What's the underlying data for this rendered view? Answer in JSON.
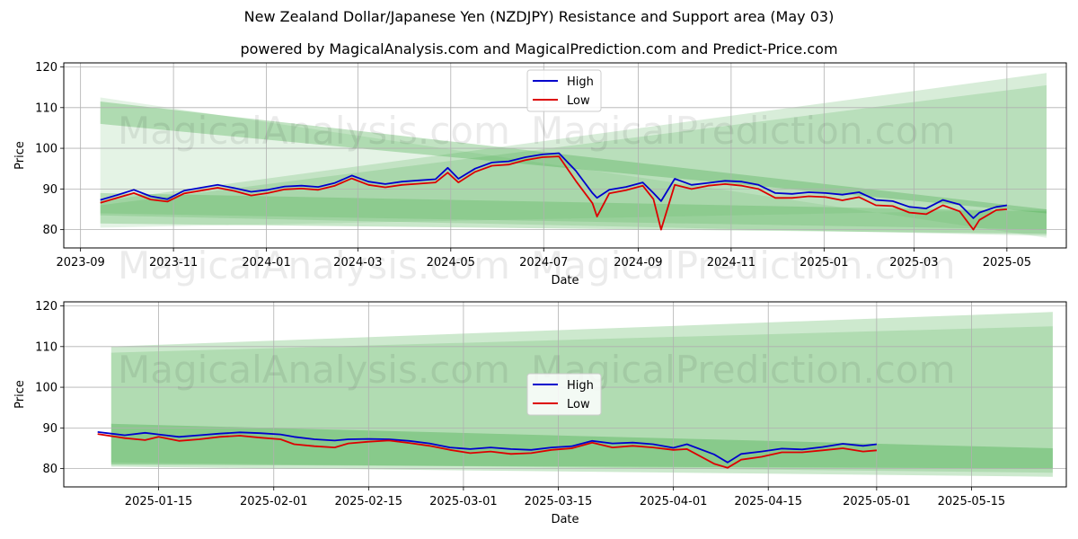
{
  "title": "New Zealand Dollar/Japanese Yen (NZDJPY) Resistance and Support area (May 03)",
  "subtitle": "powered by MagicalAnalysis.com and MagicalPrediction.com and Predict-Price.com",
  "watermarks": [
    "MagicalAnalysis.com",
    "MagicalPrediction.com"
  ],
  "colors": {
    "high": "#0000cc",
    "low": "#dd0000",
    "band": "#4caf50",
    "grid": "#b0b0b0"
  },
  "chart_data": [
    {
      "type": "line",
      "xlabel": "Date",
      "ylabel": "Price",
      "x_ticks": [
        "2023-09",
        "2023-11",
        "2024-01",
        "2024-03",
        "2024-05",
        "2024-07",
        "2024-09",
        "2024-11",
        "2025-01",
        "2025-03",
        "2025-05"
      ],
      "y_ticks": [
        80,
        90,
        100,
        110,
        120
      ],
      "xlim": [
        "2023-08-21",
        "2025-06-09"
      ],
      "ylim": [
        75.5,
        121
      ],
      "legend": {
        "position": "top-center",
        "entries": [
          "High",
          "Low"
        ]
      },
      "grid": true,
      "series": [
        {
          "name": "High",
          "color": "#0000cc",
          "x": [
            "2023-09-14",
            "2023-09-25",
            "2023-10-06",
            "2023-10-17",
            "2023-10-28",
            "2023-11-08",
            "2023-11-19",
            "2023-11-30",
            "2023-12-11",
            "2023-12-22",
            "2024-01-02",
            "2024-01-13",
            "2024-01-24",
            "2024-02-04",
            "2024-02-15",
            "2024-02-26",
            "2024-03-08",
            "2024-03-19",
            "2024-03-30",
            "2024-04-10",
            "2024-04-21",
            "2024-04-29",
            "2024-05-06",
            "2024-05-17",
            "2024-05-28",
            "2024-06-08",
            "2024-06-19",
            "2024-06-30",
            "2024-07-11",
            "2024-07-22",
            "2024-08-02",
            "2024-08-05",
            "2024-08-13",
            "2024-08-24",
            "2024-09-04",
            "2024-09-11",
            "2024-09-16",
            "2024-09-25",
            "2024-10-06",
            "2024-10-17",
            "2024-10-28",
            "2024-11-08",
            "2024-11-19",
            "2024-11-30",
            "2024-12-11",
            "2024-12-22",
            "2025-01-02",
            "2025-01-13",
            "2025-01-24",
            "2025-02-04",
            "2025-02-15",
            "2025-02-26",
            "2025-03-09",
            "2025-03-20",
            "2025-03-31",
            "2025-04-09",
            "2025-04-13",
            "2025-04-24",
            "2025-05-01"
          ],
          "values": [
            87.3,
            88.5,
            89.8,
            88.2,
            87.5,
            89.6,
            90.3,
            91.0,
            90.2,
            89.3,
            89.8,
            90.6,
            90.8,
            90.5,
            91.5,
            93.3,
            91.8,
            91.2,
            91.8,
            92.1,
            92.4,
            95.2,
            92.5,
            95.0,
            96.5,
            96.8,
            97.8,
            98.5,
            98.8,
            94.5,
            89.0,
            87.8,
            89.8,
            90.5,
            91.6,
            89.0,
            87.0,
            92.5,
            91.0,
            91.5,
            92.0,
            91.8,
            91.0,
            89.0,
            88.8,
            89.2,
            89.0,
            88.6,
            89.2,
            87.3,
            87.0,
            85.6,
            85.2,
            87.3,
            86.2,
            82.8,
            84.2,
            85.6,
            86.0
          ]
        },
        {
          "name": "Low",
          "color": "#dd0000",
          "x": [
            "2023-09-14",
            "2023-09-25",
            "2023-10-06",
            "2023-10-17",
            "2023-10-28",
            "2023-11-08",
            "2023-11-19",
            "2023-11-30",
            "2023-12-11",
            "2023-12-22",
            "2024-01-02",
            "2024-01-13",
            "2024-01-24",
            "2024-02-04",
            "2024-02-15",
            "2024-02-26",
            "2024-03-08",
            "2024-03-19",
            "2024-03-30",
            "2024-04-10",
            "2024-04-21",
            "2024-04-29",
            "2024-05-06",
            "2024-05-17",
            "2024-05-28",
            "2024-06-08",
            "2024-06-19",
            "2024-06-30",
            "2024-07-11",
            "2024-07-22",
            "2024-08-02",
            "2024-08-05",
            "2024-08-13",
            "2024-08-24",
            "2024-09-04",
            "2024-09-11",
            "2024-09-16",
            "2024-09-25",
            "2024-10-06",
            "2024-10-17",
            "2024-10-28",
            "2024-11-08",
            "2024-11-19",
            "2024-11-30",
            "2024-12-11",
            "2024-12-22",
            "2025-01-02",
            "2025-01-13",
            "2025-01-24",
            "2025-02-04",
            "2025-02-15",
            "2025-02-26",
            "2025-03-09",
            "2025-03-20",
            "2025-03-31",
            "2025-04-09",
            "2025-04-13",
            "2025-04-24",
            "2025-05-01"
          ],
          "values": [
            86.6,
            87.8,
            89.0,
            87.4,
            86.9,
            88.9,
            89.6,
            90.3,
            89.5,
            88.4,
            89.0,
            89.9,
            90.1,
            89.8,
            90.8,
            92.6,
            91.0,
            90.4,
            91.0,
            91.3,
            91.6,
            94.0,
            91.6,
            94.2,
            95.7,
            96.0,
            97.1,
            97.8,
            98.0,
            92.0,
            86.5,
            83.2,
            88.9,
            89.7,
            90.8,
            87.5,
            80.0,
            91.0,
            90.0,
            90.8,
            91.2,
            90.8,
            90.0,
            87.8,
            87.8,
            88.2,
            88.0,
            87.2,
            88.0,
            86.0,
            85.8,
            84.2,
            83.8,
            86.0,
            84.5,
            80.0,
            82.4,
            84.8,
            85.0
          ]
        }
      ]
    },
    {
      "type": "line",
      "xlabel": "Date",
      "ylabel": "Price",
      "x_ticks": [
        "2025-01-15",
        "2025-02-01",
        "2025-02-15",
        "2025-03-01",
        "2025-03-15",
        "2025-04-01",
        "2025-04-15",
        "2025-05-01",
        "2025-05-15"
      ],
      "y_ticks": [
        80,
        90,
        100,
        110,
        120
      ],
      "xlim": [
        "2025-01-01",
        "2025-05-29"
      ],
      "ylim": [
        75.5,
        121
      ],
      "legend": {
        "position": "center",
        "entries": [
          "High",
          "Low"
        ]
      },
      "grid": true,
      "series": [
        {
          "name": "High",
          "color": "#0000cc",
          "x": [
            "2025-01-06",
            "2025-01-10",
            "2025-01-13",
            "2025-01-15",
            "2025-01-18",
            "2025-01-21",
            "2025-01-24",
            "2025-01-27",
            "2025-01-30",
            "2025-02-02",
            "2025-02-04",
            "2025-02-07",
            "2025-02-10",
            "2025-02-12",
            "2025-02-15",
            "2025-02-18",
            "2025-02-21",
            "2025-02-24",
            "2025-02-27",
            "2025-03-02",
            "2025-03-05",
            "2025-03-08",
            "2025-03-11",
            "2025-03-14",
            "2025-03-17",
            "2025-03-20",
            "2025-03-23",
            "2025-03-26",
            "2025-03-29",
            "2025-04-01",
            "2025-04-03",
            "2025-04-07",
            "2025-04-09",
            "2025-04-11",
            "2025-04-14",
            "2025-04-17",
            "2025-04-20",
            "2025-04-23",
            "2025-04-26",
            "2025-04-29",
            "2025-05-01"
          ],
          "values": [
            89.0,
            88.2,
            88.8,
            88.4,
            87.8,
            88.2,
            88.6,
            88.9,
            88.7,
            88.4,
            87.8,
            87.2,
            86.9,
            87.2,
            87.3,
            87.2,
            86.8,
            86.2,
            85.2,
            84.8,
            85.2,
            84.8,
            84.6,
            85.2,
            85.5,
            86.8,
            86.2,
            86.4,
            86.0,
            85.1,
            86.0,
            83.5,
            81.5,
            83.6,
            84.2,
            84.9,
            84.7,
            85.3,
            86.1,
            85.6,
            86.0
          ]
        },
        {
          "name": "Low",
          "color": "#dd0000",
          "x": [
            "2025-01-06",
            "2025-01-10",
            "2025-01-13",
            "2025-01-15",
            "2025-01-18",
            "2025-01-21",
            "2025-01-24",
            "2025-01-27",
            "2025-01-30",
            "2025-02-02",
            "2025-02-04",
            "2025-02-07",
            "2025-02-10",
            "2025-02-12",
            "2025-02-15",
            "2025-02-18",
            "2025-02-21",
            "2025-02-24",
            "2025-02-27",
            "2025-03-02",
            "2025-03-05",
            "2025-03-08",
            "2025-03-11",
            "2025-03-14",
            "2025-03-17",
            "2025-03-20",
            "2025-03-23",
            "2025-03-26",
            "2025-03-29",
            "2025-04-01",
            "2025-04-03",
            "2025-04-07",
            "2025-04-09",
            "2025-04-11",
            "2025-04-14",
            "2025-04-17",
            "2025-04-20",
            "2025-04-23",
            "2025-04-26",
            "2025-04-29",
            "2025-05-01"
          ],
          "values": [
            88.5,
            87.5,
            87.0,
            87.8,
            86.8,
            87.2,
            87.8,
            88.1,
            87.6,
            87.2,
            86.0,
            85.5,
            85.2,
            86.2,
            86.6,
            86.9,
            86.3,
            85.6,
            84.6,
            83.8,
            84.2,
            83.6,
            83.8,
            84.6,
            85.0,
            86.4,
            85.2,
            85.6,
            85.2,
            84.6,
            84.8,
            81.2,
            80.2,
            82.2,
            82.9,
            84.0,
            84.0,
            84.5,
            85.0,
            84.2,
            84.5
          ]
        }
      ]
    }
  ]
}
